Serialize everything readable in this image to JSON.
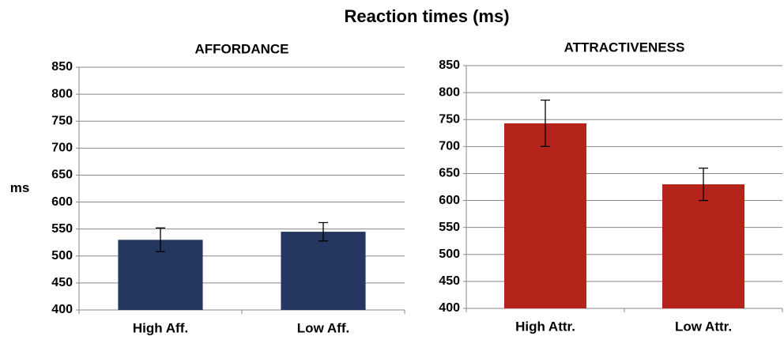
{
  "title": "Reaction times (ms)",
  "chart_data": [
    {
      "type": "bar",
      "title": "AFFORDANCE",
      "y_label": "ms",
      "categories": [
        "High Aff.",
        "Low Aff."
      ],
      "values": [
        530,
        545
      ],
      "errors": [
        22,
        17
      ],
      "color": "#253760",
      "ylim": [
        400,
        850
      ],
      "yticks": [
        400,
        450,
        500,
        550,
        600,
        650,
        700,
        750,
        800,
        850
      ],
      "grid": true
    },
    {
      "type": "bar",
      "title": "ATTRACTIVENESS",
      "categories": [
        "High Attr.",
        "Low Attr."
      ],
      "values": [
        743,
        630
      ],
      "errors": [
        43,
        30
      ],
      "color": "#b5241b",
      "ylim": [
        400,
        850
      ],
      "yticks": [
        400,
        450,
        500,
        550,
        600,
        650,
        700,
        750,
        800,
        850
      ],
      "grid": true
    }
  ]
}
